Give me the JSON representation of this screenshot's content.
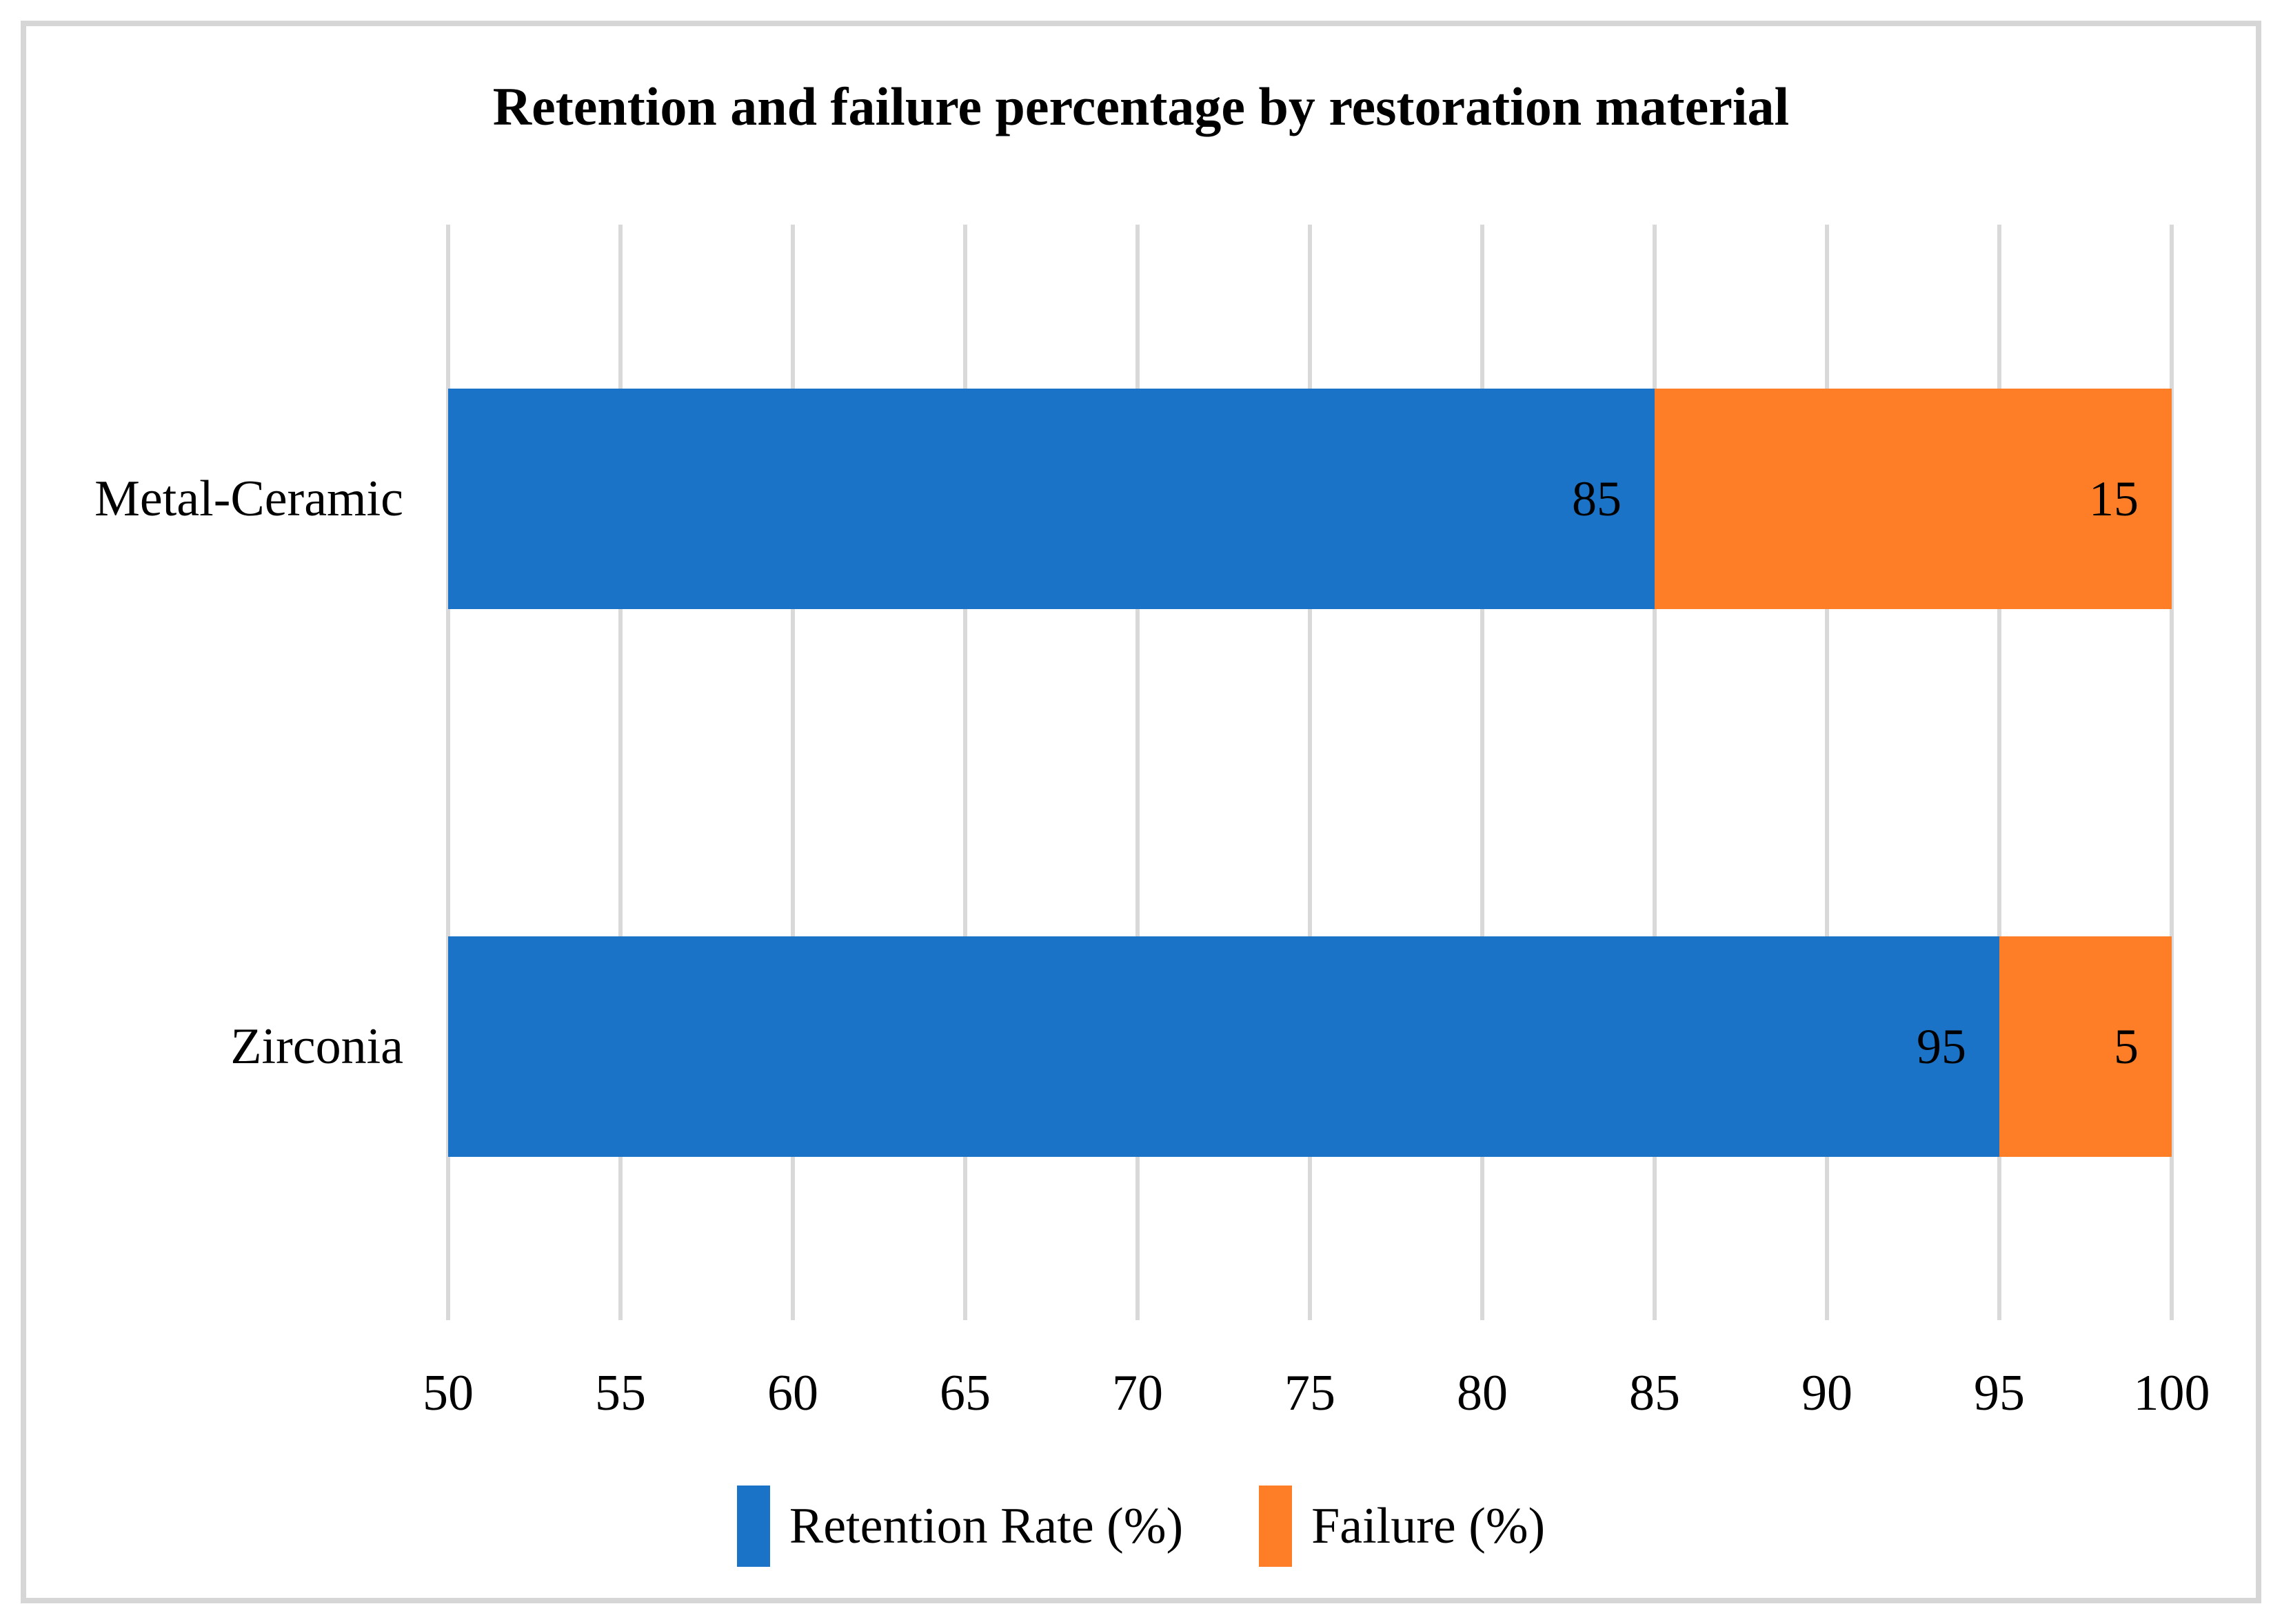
{
  "chart_data": {
    "type": "bar",
    "orientation": "horizontal",
    "stacked": true,
    "title": "Retention and failure percentage by restoration material",
    "categories": [
      "Metal-Ceramic",
      "Zirconia"
    ],
    "series": [
      {
        "name": "Retention Rate (%)",
        "color": "#1B73C8",
        "values": [
          85,
          95
        ]
      },
      {
        "name": "Failure (%)",
        "color": "#FD7E26",
        "values": [
          15,
          5
        ]
      }
    ],
    "xlabel": "",
    "ylabel": "",
    "xlim": [
      50,
      100
    ],
    "x_tick_step": 5,
    "x_ticks": [
      50,
      55,
      60,
      65,
      70,
      75,
      80,
      85,
      90,
      95,
      100
    ],
    "grid": "vertical-only",
    "legend_position": "bottom-center",
    "data_label_position": "inside-end",
    "colors": {
      "gridline": "#D9D9D9",
      "frame_border": "#D6D6D6",
      "background": "#FFFFFF",
      "text": "#000000"
    }
  }
}
